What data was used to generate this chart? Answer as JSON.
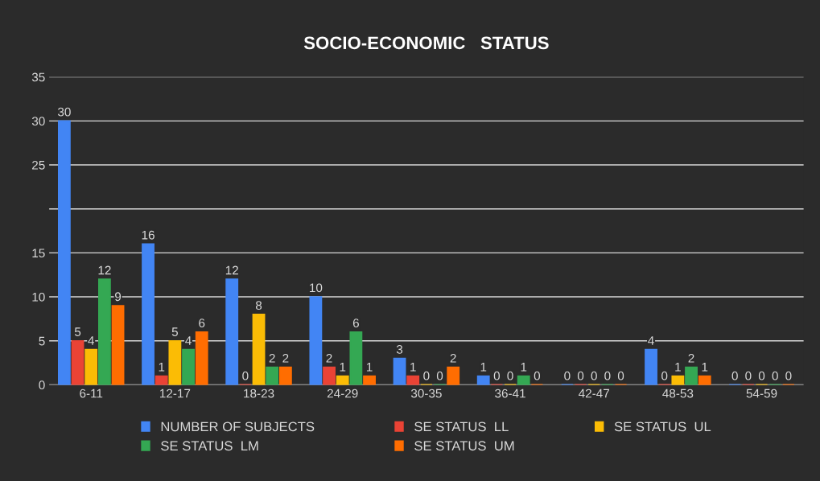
{
  "chart_data": {
    "type": "bar",
    "title": "SOCIO-ECONOMIC   STATUS",
    "categories": [
      "6-11",
      "12-17",
      "18-23",
      "24-29",
      "30-35",
      "36-41",
      "42-47",
      "48-53",
      "54-59"
    ],
    "series": [
      {
        "name": "NUMBER OF SUBJECTS",
        "color": "#4285f4",
        "values": [
          30,
          16,
          12,
          10,
          3,
          1,
          0,
          4,
          0
        ]
      },
      {
        "name": "SE STATUS  LL",
        "color": "#ea4335",
        "values": [
          5,
          1,
          0,
          2,
          1,
          0,
          0,
          0,
          0
        ]
      },
      {
        "name": "SE STATUS  UL",
        "color": "#fbbc05",
        "values": [
          4,
          5,
          8,
          1,
          0,
          0,
          0,
          1,
          0
        ]
      },
      {
        "name": "SE STATUS  LM",
        "color": "#34a853",
        "values": [
          12,
          4,
          2,
          6,
          0,
          1,
          0,
          2,
          0
        ]
      },
      {
        "name": "SE STATUS  UM",
        "color": "#ff6d01",
        "values": [
          9,
          6,
          2,
          1,
          2,
          0,
          0,
          1,
          0
        ]
      }
    ],
    "ylim": [
      0,
      35
    ],
    "yticks": [
      0,
      5,
      10,
      15,
      {
        "value": 20,
        "label": null
      },
      25,
      30,
      35
    ],
    "grid": "y",
    "legend": "bottom",
    "data_labels": true
  }
}
